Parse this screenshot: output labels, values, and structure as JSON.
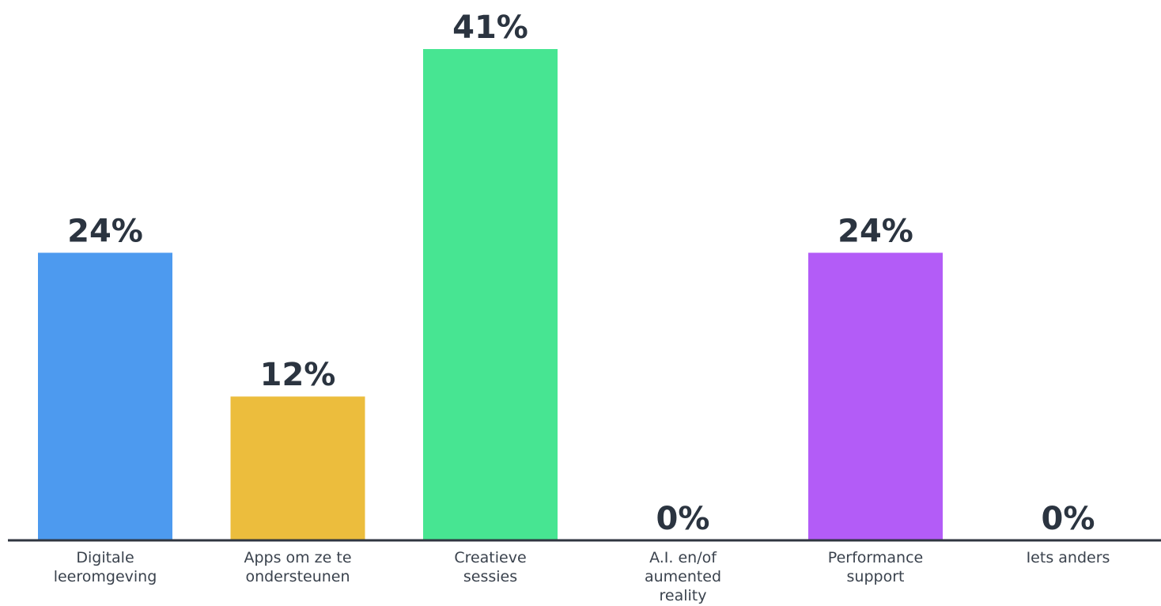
{
  "chart_data": {
    "type": "bar",
    "categories": [
      [
        "Digitale",
        "leeromgeving"
      ],
      [
        "Apps om ze te",
        "ondersteunen"
      ],
      [
        "Creatieve",
        "sessies"
      ],
      [
        "A.I. en/of",
        "aumented",
        "reality"
      ],
      [
        "Performance",
        "support"
      ],
      [
        "Iets anders"
      ]
    ],
    "values": [
      24,
      12,
      41,
      0,
      24,
      0
    ],
    "value_labels": [
      "24%",
      "12%",
      "41%",
      "0%",
      "24%",
      "0%"
    ],
    "colors": [
      "#4d9aef",
      "#ecbd3d",
      "#47e592",
      "#4d9aef",
      "#b35cf7",
      "#4d9aef"
    ],
    "title": "",
    "xlabel": "",
    "ylabel": "",
    "ylim": [
      0,
      41
    ],
    "grid": false,
    "legend": "none"
  }
}
